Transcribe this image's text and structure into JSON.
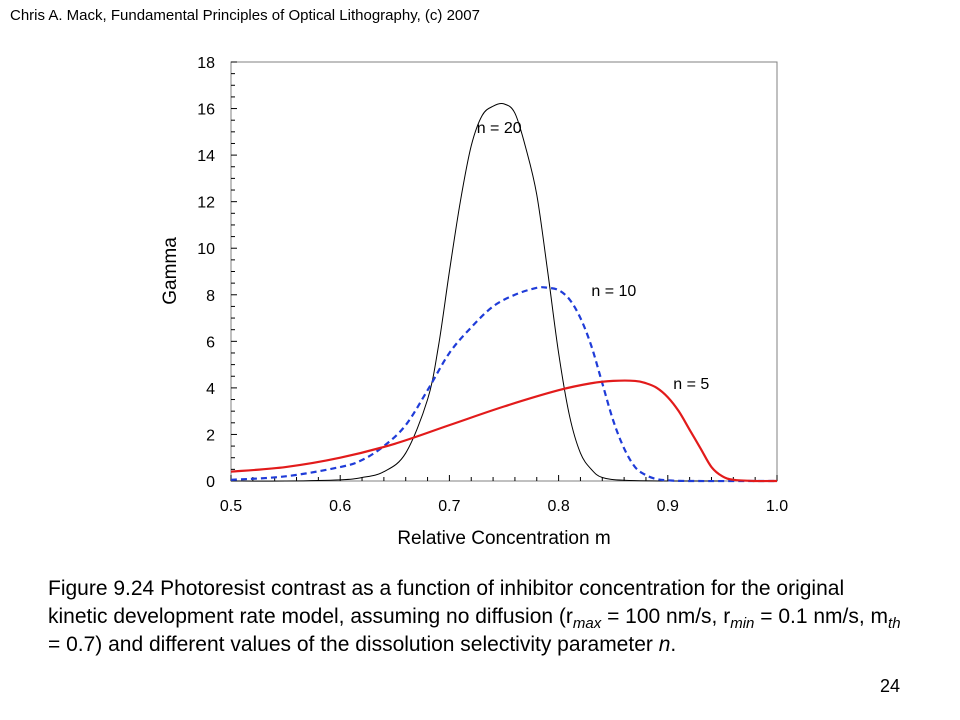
{
  "header": {
    "text": "Chris A. Mack, Fundamental Principles of Optical Lithography, (c) 2007"
  },
  "page_number": "24",
  "caption": {
    "text1": "Figure 9.24 Photoresist contrast as a function of inhibitor concentration for the original kinetic development rate model, assuming no diffusion (r",
    "sub_max": "max",
    "text2": " = 100 nm/s, r",
    "sub_min": "min",
    "text3": " = 0.1 nm/s, m",
    "sub_th": "th",
    "text4": " = 0.7) and different values of the dissolution selectivity parameter ",
    "n_var": "n",
    "text5": "."
  },
  "chart_data": {
    "type": "line",
    "xlabel": "Relative Concentration m",
    "ylabel": "Gamma",
    "xlim": [
      0.5,
      1.0
    ],
    "ylim": [
      0,
      18
    ],
    "x_ticks": [
      "0.5",
      "0.6",
      "0.7",
      "0.8",
      "0.9",
      "1.0"
    ],
    "y_ticks": [
      "0",
      "2",
      "4",
      "6",
      "8",
      "10",
      "12",
      "14",
      "16",
      "18"
    ],
    "grid": false,
    "legend": "none",
    "series": [
      {
        "name": "n = 20",
        "color": "#000000",
        "style": "solid",
        "label_pos": [
          0.725,
          15.2
        ],
        "x": [
          0.5,
          0.55,
          0.6,
          0.62,
          0.64,
          0.66,
          0.68,
          0.69,
          0.7,
          0.71,
          0.72,
          0.73,
          0.74,
          0.75,
          0.76,
          0.77,
          0.78,
          0.79,
          0.8,
          0.81,
          0.82,
          0.83,
          0.84,
          0.86,
          0.9,
          0.95
        ],
        "y": [
          0.0,
          0.0,
          0.05,
          0.15,
          0.4,
          1.2,
          3.5,
          5.8,
          9.0,
          12.0,
          14.4,
          15.7,
          16.1,
          16.2,
          15.8,
          14.3,
          12.3,
          9.0,
          5.5,
          2.8,
          1.2,
          0.5,
          0.15,
          0.03,
          0.0,
          0.0
        ]
      },
      {
        "name": "n = 10",
        "color": "#1f3cd8",
        "style": "dashed",
        "label_pos": [
          0.83,
          8.2
        ],
        "x": [
          0.5,
          0.55,
          0.6,
          0.62,
          0.64,
          0.66,
          0.68,
          0.7,
          0.72,
          0.74,
          0.76,
          0.78,
          0.79,
          0.8,
          0.81,
          0.82,
          0.83,
          0.84,
          0.85,
          0.86,
          0.87,
          0.88,
          0.89,
          0.9,
          0.92,
          1.0
        ],
        "y": [
          0.05,
          0.2,
          0.6,
          0.9,
          1.5,
          2.4,
          3.9,
          5.5,
          6.6,
          7.5,
          8.0,
          8.3,
          8.3,
          8.2,
          7.8,
          7.0,
          5.8,
          4.2,
          2.6,
          1.4,
          0.6,
          0.25,
          0.08,
          0.03,
          0.0,
          0.0
        ]
      },
      {
        "name": "n = 5",
        "color": "#e21b1b",
        "style": "solid",
        "label_pos": [
          0.905,
          4.2
        ],
        "x": [
          0.5,
          0.55,
          0.6,
          0.65,
          0.7,
          0.75,
          0.8,
          0.83,
          0.85,
          0.87,
          0.88,
          0.89,
          0.9,
          0.91,
          0.92,
          0.93,
          0.94,
          0.95,
          0.96,
          0.98,
          1.0
        ],
        "y": [
          0.4,
          0.6,
          1.0,
          1.6,
          2.4,
          3.2,
          3.9,
          4.2,
          4.3,
          4.3,
          4.2,
          4.0,
          3.6,
          3.0,
          2.2,
          1.4,
          0.6,
          0.2,
          0.05,
          0.0,
          0.0
        ]
      }
    ]
  }
}
